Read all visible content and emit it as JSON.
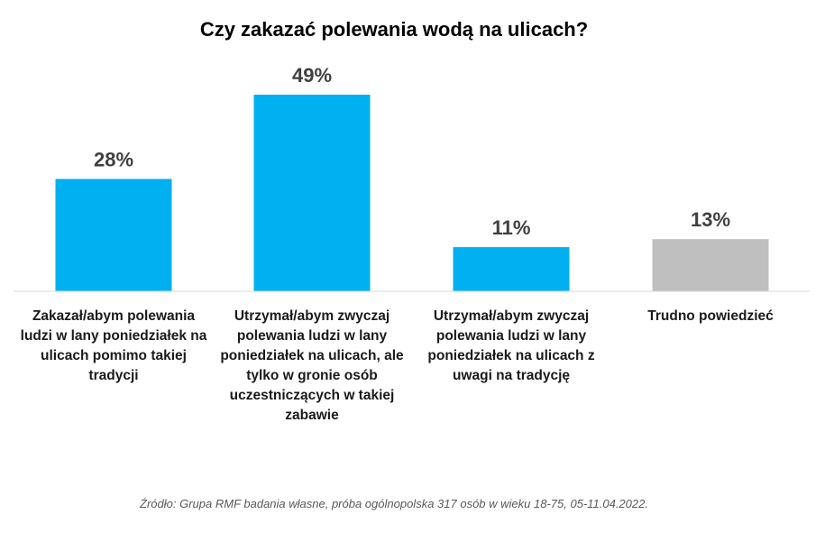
{
  "chart_data": {
    "type": "bar",
    "title": "Czy zakazać polewania wodą na ulicach?",
    "categories": [
      "Zakazał/abym polewania ludzi w lany poniedziałek na ulicach pomimo takiej tradycji",
      "Utrzymał/abym zwyczaj polewania ludzi w lany poniedziałek na ulicach, ale tylko w gronie osób uczestniczących w takiej zabawie",
      "Utrzymał/abym zwyczaj polewania ludzi w lany poniedziałek na ulicach z uwagi na tradycję",
      "Trudno powiedzieć"
    ],
    "values": [
      28,
      49,
      11,
      13
    ],
    "value_labels": [
      "28%",
      "49%",
      "11%",
      "13%"
    ],
    "bar_colors": [
      "#00B0F0",
      "#00B0F0",
      "#00B0F0",
      "#BFBFBF"
    ],
    "xlabel": "",
    "ylabel": "",
    "ylim": [
      0,
      55
    ],
    "grid": false,
    "source": "Źródło: Grupa RMF badania własne, próba ogólnopolska 317 osób w wieku 18-75, 05-11.04.2022."
  }
}
